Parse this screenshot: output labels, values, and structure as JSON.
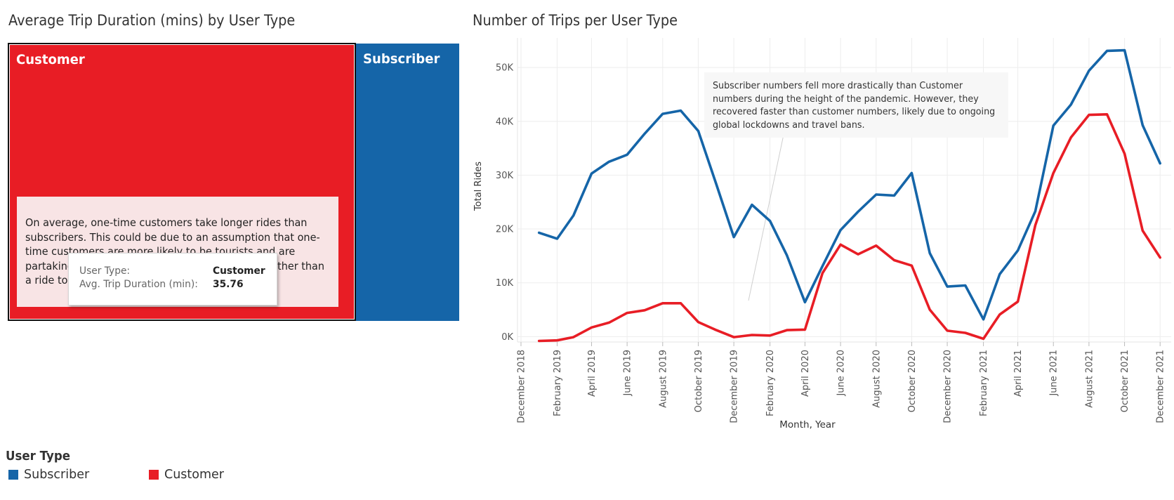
{
  "treemap": {
    "title": "Average Trip Duration (mins) by User Type",
    "tiles": [
      {
        "label": "Customer",
        "color": "#e81d25",
        "avg_trip_duration_min": 35.76
      },
      {
        "label": "Subscriber",
        "color": "#1565a8"
      }
    ],
    "annotation": "On average, one-time customers take longer rides than subscribers. This could be due to an assumption that one-time customers are more likely to be tourists and are partaking in leisurely rides of the city on a bike rather than a ride to work or school.",
    "tooltip": {
      "user_type_label": "User Type:",
      "user_type_value": "Customer",
      "duration_label": "Avg. Trip Duration (min):",
      "duration_value": "35.76"
    }
  },
  "line_chart": {
    "title": "Number of Trips per User Type",
    "annotation": "Subscriber numbers fell more drastically than Customer numbers during the height of the pandemic. However, they recovered faster than customer numbers, likely due to ongoing global lockdowns and travel bans."
  },
  "legend": {
    "title": "User Type",
    "items": [
      {
        "label": "Subscriber",
        "color": "#1565a8"
      },
      {
        "label": "Customer",
        "color": "#e81d25"
      }
    ]
  },
  "chart_data": [
    {
      "type": "treemap",
      "title": "Average Trip Duration (mins) by User Type",
      "categories": [
        "Customer",
        "Subscriber"
      ],
      "values": [
        35.76,
        null
      ],
      "colors": [
        "#e81d25",
        "#1565a8"
      ]
    },
    {
      "type": "line",
      "title": "Number of Trips per User Type",
      "xlabel": "Month, Year",
      "ylabel": "Total Rides",
      "x": [
        "2019-01",
        "2019-02",
        "2019-03",
        "2019-04",
        "2019-05",
        "2019-06",
        "2019-07",
        "2019-08",
        "2019-09",
        "2019-10",
        "2019-11",
        "2019-12",
        "2020-01",
        "2020-02",
        "2020-03",
        "2020-04",
        "2020-05",
        "2020-06",
        "2020-07",
        "2020-08",
        "2020-09",
        "2020-10",
        "2020-11",
        "2020-12",
        "2021-01",
        "2021-02",
        "2021-03",
        "2021-04",
        "2021-05",
        "2021-06",
        "2021-07",
        "2021-08",
        "2021-09",
        "2021-10",
        "2021-11",
        "2021-12"
      ],
      "x_range": [
        "2018-11-25",
        "2021-12-20"
      ],
      "x_ticks": [
        "December 2018",
        "February 2019",
        "April 2019",
        "June 2019",
        "August 2019",
        "October 2019",
        "December 2019",
        "February 2020",
        "April 2020",
        "June 2020",
        "August 2020",
        "October 2020",
        "December 2020",
        "February 2021",
        "April 2021",
        "June 2021",
        "August 2021",
        "October 2021",
        "December 2021"
      ],
      "x_tick_dates": [
        "2018-12-01",
        "2019-02-01",
        "2019-04-01",
        "2019-06-01",
        "2019-08-01",
        "2019-10-01",
        "2019-12-01",
        "2020-02-01",
        "2020-04-01",
        "2020-06-01",
        "2020-08-01",
        "2020-10-01",
        "2020-12-01",
        "2021-02-01",
        "2021-04-01",
        "2021-06-01",
        "2021-08-01",
        "2021-10-01",
        "2021-12-01"
      ],
      "y_ticks": [
        "0K",
        "10K",
        "20K",
        "30K",
        "40K",
        "50K"
      ],
      "y_tick_values": [
        0,
        10000,
        20000,
        30000,
        40000,
        50000
      ],
      "ylim": [
        -1000,
        55500
      ],
      "grid": true,
      "series": [
        {
          "name": "Subscriber",
          "color": "#1565a8",
          "values": [
            19300,
            18200,
            22500,
            30300,
            32500,
            33800,
            37700,
            41400,
            42000,
            38200,
            28300,
            18500,
            24500,
            21500,
            15100,
            6400,
            13100,
            19800,
            23200,
            26400,
            26200,
            30400,
            15500,
            9300,
            9500,
            3200,
            11600,
            16000,
            23300,
            39200,
            43100,
            49400,
            53100,
            53200,
            39300,
            32200
          ]
        },
        {
          "name": "Customer",
          "color": "#e81d25",
          "values": [
            -800,
            -700,
            -100,
            1700,
            2600,
            4400,
            4900,
            6200,
            6200,
            2700,
            1200,
            -100,
            300,
            200,
            1200,
            1300,
            11800,
            17100,
            15300,
            16900,
            14200,
            13200,
            5000,
            1100,
            700,
            -400,
            4100,
            6500,
            20700,
            30400,
            37000,
            41200,
            41300,
            34000,
            19700,
            14700
          ]
        }
      ]
    }
  ]
}
